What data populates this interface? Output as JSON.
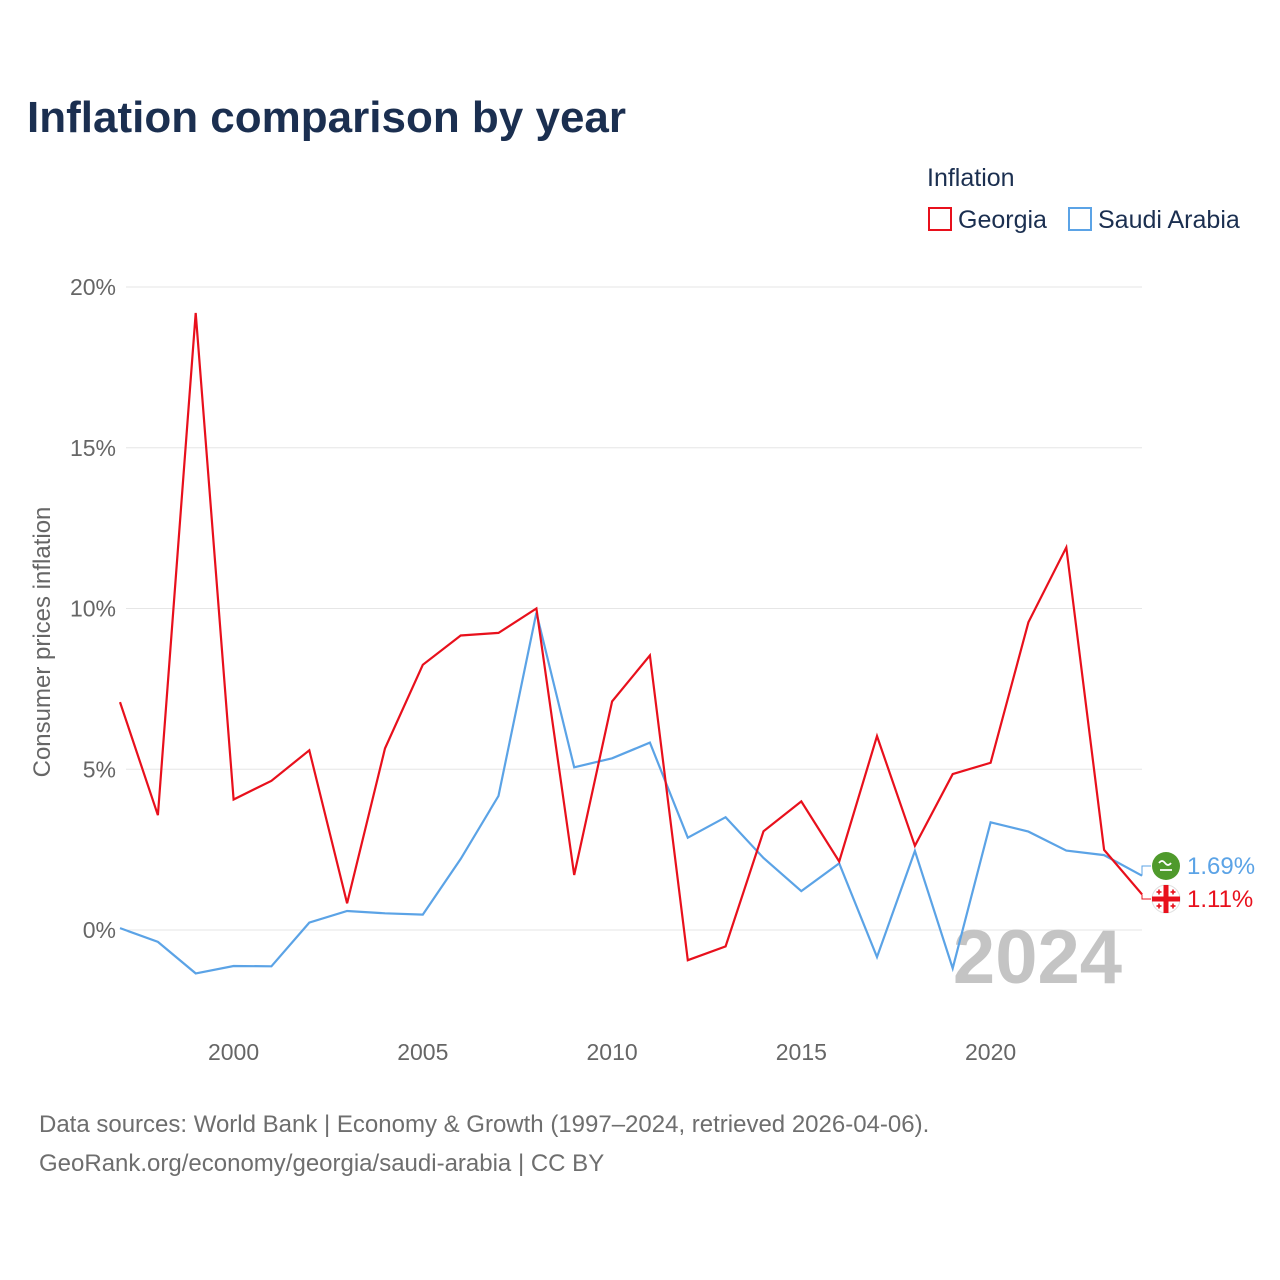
{
  "chart_data": {
    "type": "line",
    "title": "Inflation comparison by year",
    "legend_title": "Inflation",
    "legend_position": "top-right",
    "ylabel": "Consumer prices inflation",
    "xlabel": "",
    "ylim": [
      -2.5,
      20
    ],
    "xlim": [
      1997,
      2024
    ],
    "y_ticks": [
      0,
      5,
      10,
      15,
      20
    ],
    "y_tick_labels": [
      "0%",
      "5%",
      "10%",
      "15%",
      "20%"
    ],
    "x_ticks": [
      2000,
      2005,
      2010,
      2015,
      2020
    ],
    "x_tick_labels": [
      "2000",
      "2005",
      "2010",
      "2015",
      "2020"
    ],
    "grid": true,
    "x": [
      1997,
      1998,
      1999,
      2000,
      2001,
      2002,
      2003,
      2004,
      2005,
      2006,
      2007,
      2008,
      2009,
      2010,
      2011,
      2012,
      2013,
      2014,
      2015,
      2016,
      2017,
      2018,
      2019,
      2020,
      2021,
      2022,
      2023,
      2024
    ],
    "series": [
      {
        "name": "Georgia",
        "color": "#e8101c",
        "end_label": "1.11%",
        "flag_icon": "georgia-flag-icon",
        "values": [
          7.09,
          3.57,
          19.19,
          4.06,
          4.64,
          5.59,
          0.83,
          5.65,
          8.25,
          9.16,
          9.24,
          10.0,
          1.71,
          7.11,
          8.54,
          -0.94,
          -0.51,
          3.07,
          4.0,
          2.13,
          6.03,
          2.62,
          4.85,
          5.2,
          9.57,
          11.9,
          2.49,
          1.11
        ]
      },
      {
        "name": "Saudi Arabia",
        "color": "#5ba3e6",
        "end_label": "1.69%",
        "flag_icon": "saudi-arabia-flag-icon",
        "values": [
          0.06,
          -0.37,
          -1.35,
          -1.12,
          -1.13,
          0.23,
          0.59,
          0.52,
          0.48,
          2.21,
          4.17,
          9.87,
          5.06,
          5.34,
          5.83,
          2.87,
          3.51,
          2.24,
          1.21,
          2.07,
          -0.84,
          2.46,
          -1.19,
          3.35,
          3.06,
          2.47,
          2.33,
          1.69
        ]
      }
    ],
    "year_watermark": "2024"
  },
  "footer": {
    "source_line": "Data sources: World Bank | Economy & Growth (1997–2024, retrieved 2026-04-06).",
    "url_line": "GeoRank.org/economy/georgia/saudi-arabia | CC BY"
  }
}
